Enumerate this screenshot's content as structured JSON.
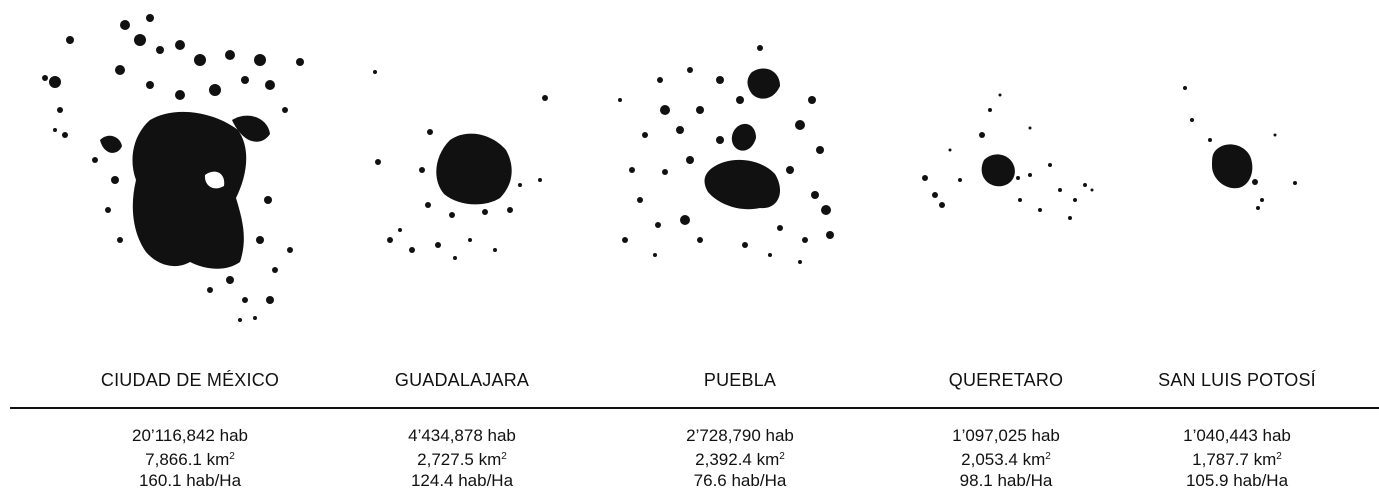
{
  "cities": [
    {
      "id": "cdmx",
      "name": "CIUDAD DE MÉXICO",
      "population": "20’116,842 hab",
      "area": "7,866.1 km",
      "area_exp": "2",
      "density": "160.1 hab/Ha"
    },
    {
      "id": "gdl",
      "name": "GUADALAJARA",
      "population": "4’434,878 hab",
      "area": "2,727.5 km",
      "area_exp": "2",
      "density": "124.4 hab/Ha"
    },
    {
      "id": "pue",
      "name": "PUEBLA",
      "population": "2’728,790 hab",
      "area": "2,392.4 km",
      "area_exp": "2",
      "density": "76.6 hab/Ha"
    },
    {
      "id": "qro",
      "name": "QUERETARO",
      "population": "1’097,025 hab",
      "area": "2,053.4 km",
      "area_exp": "2",
      "density": "98.1 hab/Ha"
    },
    {
      "id": "slp",
      "name": "SAN LUIS POTOSÍ",
      "population": "1’040,443 hab",
      "area": "1,787.7 km",
      "area_exp": "2",
      "density": "105.9 hab/Ha"
    }
  ],
  "colors": {
    "ink": "#111111",
    "background": "#ffffff"
  }
}
